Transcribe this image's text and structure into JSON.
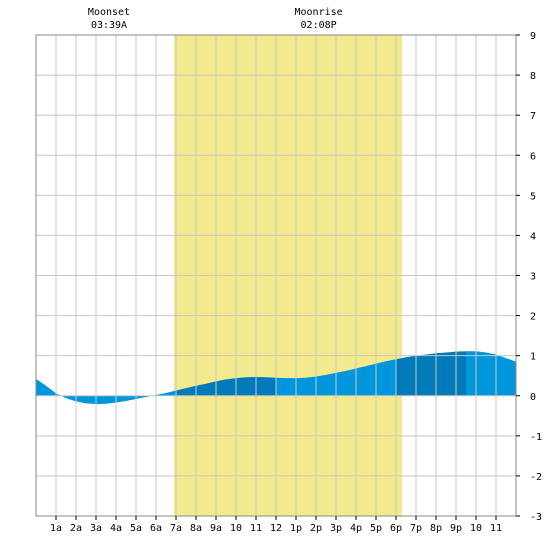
{
  "chart_data": {
    "type": "area",
    "title": "",
    "xlabel": "",
    "ylabel": "",
    "ylim": [
      -3,
      9
    ],
    "yticks": [
      -3,
      -2,
      -1,
      0,
      1,
      2,
      3,
      4,
      5,
      6,
      7,
      8,
      9
    ],
    "xlim": [
      0,
      24
    ],
    "grid": true,
    "x_tick_labels": [
      "1a",
      "2a",
      "3a",
      "4a",
      "5a",
      "6a",
      "7a",
      "8a",
      "9a",
      "10",
      "11",
      "12",
      "1p",
      "2p",
      "3p",
      "4p",
      "5p",
      "6p",
      "7p",
      "8p",
      "9p",
      "10",
      "11"
    ],
    "daylight": {
      "start_hour": 6.9,
      "end_hour": 18.3
    },
    "moon_events": [
      {
        "label": "Moonset",
        "time": "03:39A",
        "hour": 3.65
      },
      {
        "label": "Moonrise",
        "time": "02:08P",
        "hour": 14.13
      }
    ],
    "colors": {
      "water_light": "#0096dc",
      "water_dark": "#007ab8",
      "daylight": "#f2ea8c",
      "grid": "#c8c8c8"
    },
    "series": [
      {
        "x": [
          0,
          0.5,
          1,
          1.5,
          2,
          2.5,
          3,
          3.5,
          4,
          4.5,
          5,
          5.5,
          6,
          6.5,
          7,
          7.5,
          8,
          8.5,
          9,
          9.5,
          10,
          10.5,
          11,
          11.5,
          12,
          12.5,
          13,
          13.5,
          14,
          14.5,
          15,
          15.5,
          16,
          16.5,
          17,
          17.5,
          18,
          18.5,
          19,
          19.5,
          20,
          20.5,
          21,
          21.5,
          22,
          22.5,
          23,
          23.5,
          24
        ],
        "values": [
          0.42,
          0.25,
          0.06,
          -0.06,
          -0.14,
          -0.19,
          -0.21,
          -0.2,
          -0.17,
          -0.13,
          -0.08,
          -0.03,
          0.02,
          0.07,
          0.13,
          0.19,
          0.25,
          0.3,
          0.36,
          0.41,
          0.44,
          0.46,
          0.47,
          0.46,
          0.45,
          0.44,
          0.44,
          0.45,
          0.48,
          0.52,
          0.57,
          0.62,
          0.68,
          0.74,
          0.8,
          0.86,
          0.91,
          0.96,
          1.0,
          1.03,
          1.06,
          1.08,
          1.1,
          1.11,
          1.11,
          1.08,
          1.03,
          0.94,
          0.85
        ]
      }
    ],
    "shading_bands": [
      [
        0,
        7
      ],
      [
        7,
        12
      ],
      [
        12,
        18
      ],
      [
        18,
        21.5
      ],
      [
        21.5,
        24
      ]
    ]
  }
}
